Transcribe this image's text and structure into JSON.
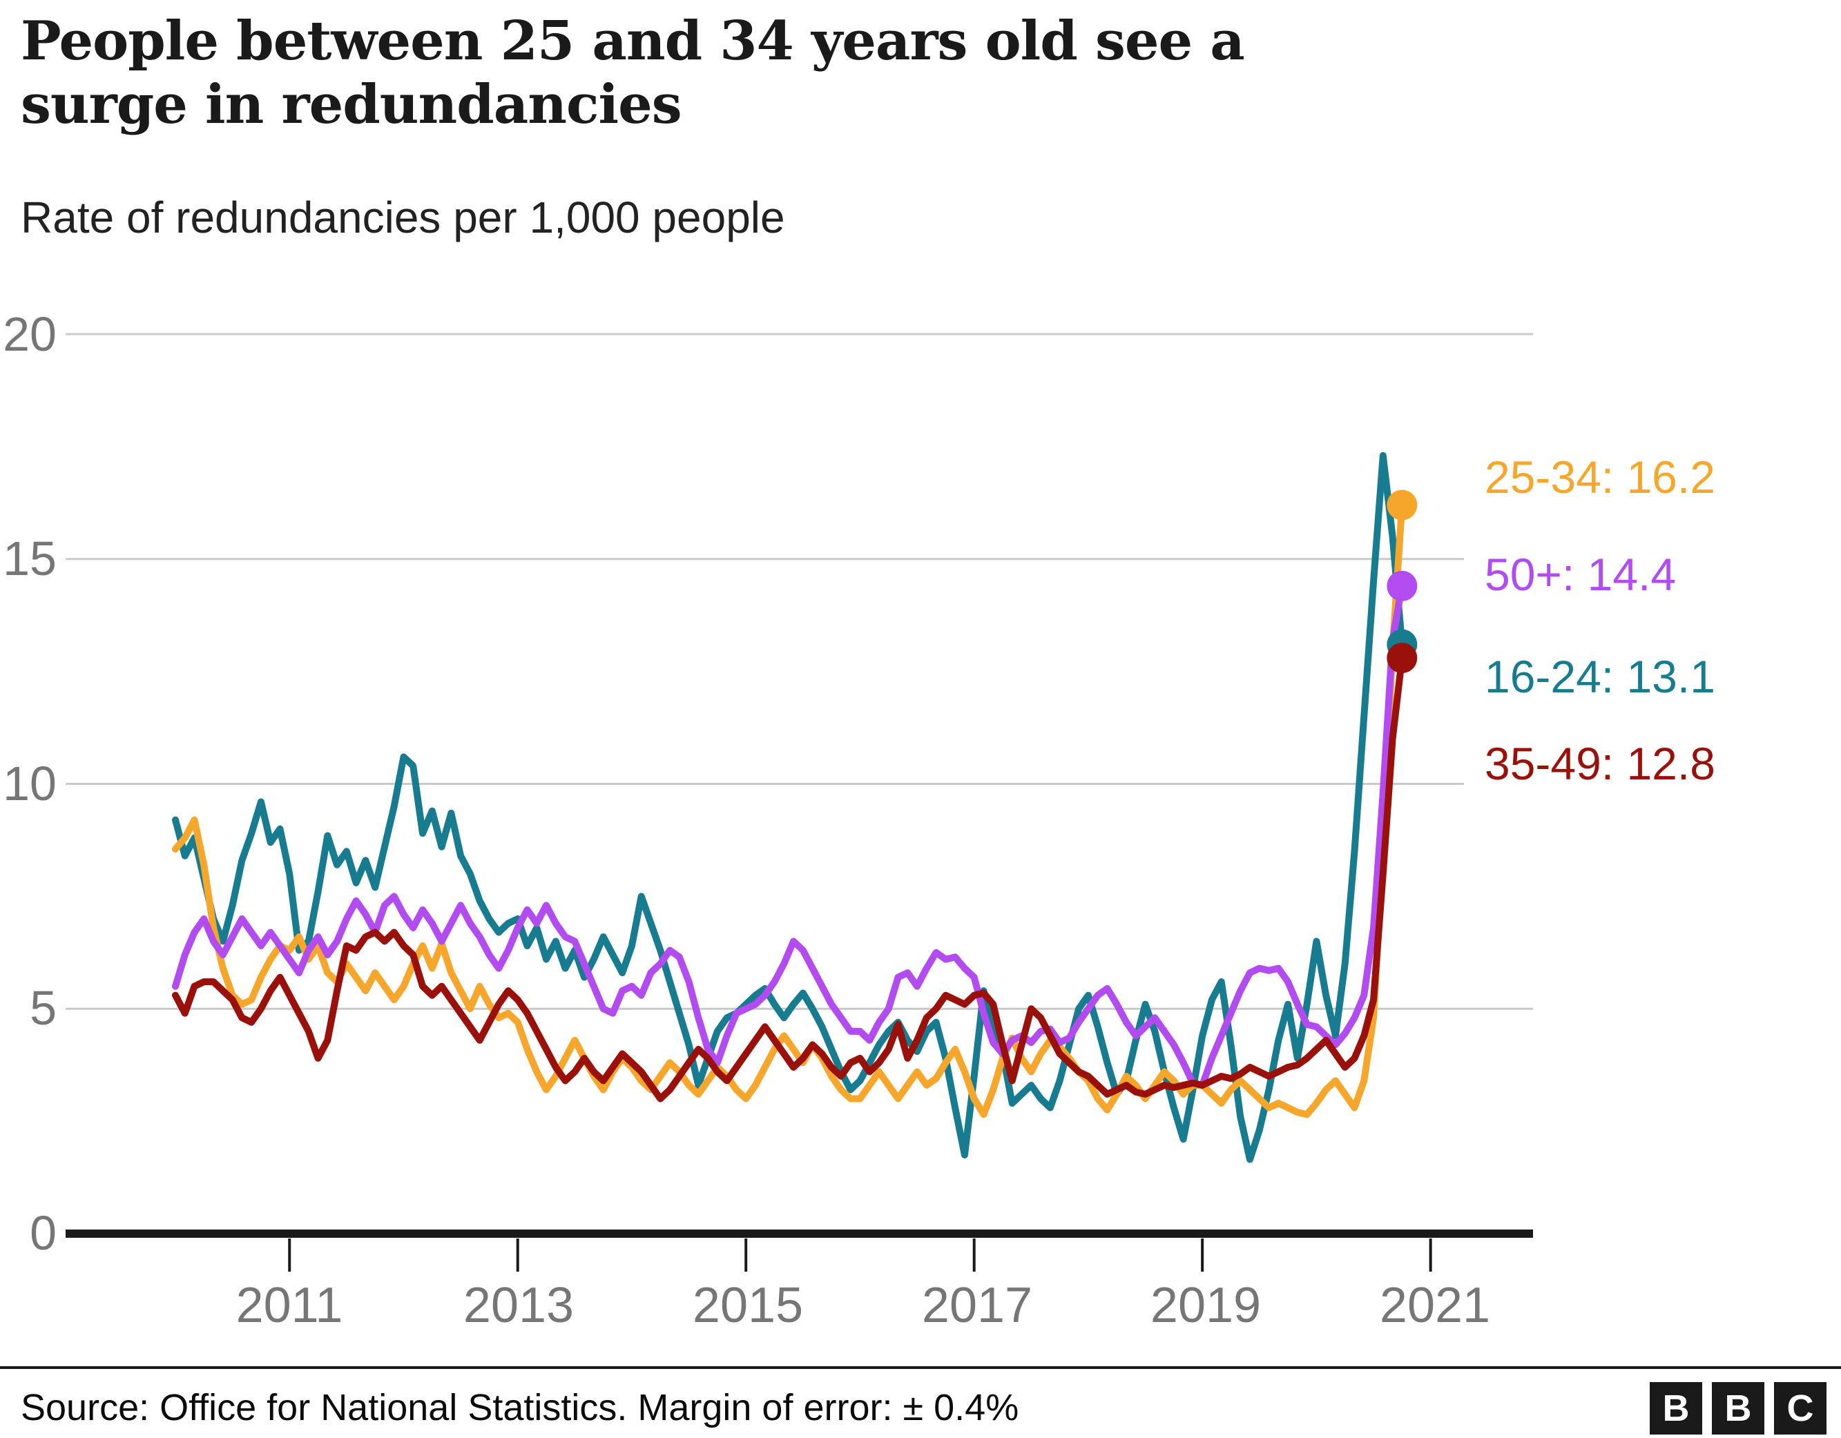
{
  "header": {
    "title_lines": [
      "People between 25 and 34 years old see a",
      "surge in redundancies"
    ],
    "subtitle": "Rate of redundancies per 1,000 people"
  },
  "footer": {
    "source": "Source: Office for National Statistics. Margin of error: ± 0.4%",
    "logo_letters": [
      "B",
      "B",
      "C"
    ]
  },
  "colors": {
    "orange": "#F7A62C",
    "purple": "#B24CF0",
    "teal": "#177C90",
    "dark_red": "#99110A",
    "grid": "#C9C9C9",
    "axis": "#1A1A1A",
    "axis_text": "#767676"
  },
  "chart_data": {
    "type": "line",
    "title": "People between 25 and 34 years old see a surge in redundancies",
    "subtitle": "Rate of redundancies per 1,000 people",
    "ylabel": "Rate of redundancies per 1,000 people",
    "xlabel": "",
    "x_start": "2010-01",
    "x_end": "2020-10",
    "x_frequency": "monthly",
    "x_tick_labels": [
      "2011",
      "2013",
      "2015",
      "2017",
      "2019",
      "2021"
    ],
    "y_ticks": [
      0,
      5,
      10,
      15,
      20
    ],
    "y_tick_labels": [
      "0",
      "5",
      "10",
      "15",
      "20"
    ],
    "ylim": [
      0,
      20
    ],
    "grid": "horizontal",
    "legend_position": "right-annotations",
    "series": [
      {
        "name": "16-24",
        "color": "#177C90",
        "final_value": 13.1,
        "annotation": "16-24: 13.1",
        "values": [
          9.2,
          8.4,
          8.8,
          7.9,
          7.0,
          6.5,
          7.3,
          8.3,
          8.9,
          9.6,
          8.7,
          9.0,
          8.0,
          6.3,
          6.5,
          7.6,
          8.85,
          8.2,
          8.5,
          7.8,
          8.3,
          7.7,
          8.6,
          9.5,
          10.6,
          10.4,
          8.9,
          9.4,
          8.6,
          9.35,
          8.4,
          8.0,
          7.4,
          7.0,
          6.7,
          6.9,
          7.0,
          6.4,
          6.8,
          6.1,
          6.5,
          5.9,
          6.3,
          5.7,
          6.1,
          6.6,
          6.2,
          5.8,
          6.4,
          7.5,
          6.9,
          6.3,
          5.6,
          4.9,
          4.2,
          3.3,
          3.9,
          4.5,
          4.8,
          4.9,
          5.1,
          5.3,
          5.45,
          5.1,
          4.8,
          5.1,
          5.35,
          5.0,
          4.6,
          4.1,
          3.6,
          3.2,
          3.4,
          3.8,
          4.2,
          4.5,
          4.7,
          4.3,
          4.05,
          4.5,
          4.7,
          3.9,
          2.8,
          1.75,
          3.5,
          5.4,
          4.6,
          4.0,
          2.9,
          3.1,
          3.3,
          3.0,
          2.8,
          3.4,
          4.2,
          5.0,
          5.3,
          4.6,
          3.8,
          3.1,
          3.4,
          4.3,
          5.1,
          4.5,
          3.6,
          2.8,
          2.1,
          3.2,
          4.4,
          5.2,
          5.6,
          4.2,
          2.6,
          1.65,
          2.3,
          3.2,
          4.3,
          5.1,
          3.9,
          5.1,
          6.5,
          5.3,
          4.4,
          6.0,
          8.5,
          11.5,
          14.5,
          17.3,
          15.5,
          13.1
        ]
      },
      {
        "name": "25-34",
        "color": "#F7A62C",
        "final_value": 16.2,
        "annotation": "25-34: 16.2",
        "values": [
          8.55,
          8.8,
          9.2,
          8.2,
          6.8,
          5.9,
          5.3,
          5.1,
          5.2,
          5.7,
          6.1,
          6.4,
          6.3,
          6.6,
          6.1,
          6.4,
          5.8,
          5.6,
          6.0,
          5.7,
          5.4,
          5.8,
          5.5,
          5.2,
          5.5,
          6.0,
          6.4,
          5.9,
          6.45,
          5.8,
          5.4,
          5.0,
          5.5,
          5.1,
          4.8,
          4.9,
          4.7,
          4.1,
          3.6,
          3.2,
          3.5,
          3.9,
          4.3,
          3.9,
          3.5,
          3.2,
          3.6,
          3.9,
          3.7,
          3.4,
          3.2,
          3.5,
          3.8,
          3.6,
          3.3,
          3.1,
          3.4,
          3.7,
          3.5,
          3.2,
          3.0,
          3.3,
          3.7,
          4.1,
          4.4,
          4.1,
          3.8,
          4.2,
          3.9,
          3.5,
          3.2,
          3.0,
          3.0,
          3.3,
          3.6,
          3.3,
          3.0,
          3.3,
          3.6,
          3.3,
          3.45,
          3.8,
          4.1,
          3.6,
          3.0,
          2.65,
          3.2,
          3.9,
          4.35,
          3.9,
          3.6,
          4.0,
          4.3,
          4.15,
          3.9,
          3.6,
          3.4,
          3.0,
          2.75,
          3.1,
          3.5,
          3.3,
          3.0,
          3.3,
          3.6,
          3.4,
          3.1,
          3.3,
          3.3,
          3.1,
          2.9,
          3.2,
          3.4,
          3.2,
          3.0,
          2.8,
          2.9,
          2.8,
          2.7,
          2.65,
          2.9,
          3.2,
          3.4,
          3.1,
          2.8,
          3.4,
          4.8,
          8.5,
          13.0,
          16.2
        ]
      },
      {
        "name": "50+",
        "color": "#B24CF0",
        "final_value": 14.4,
        "annotation": "50+: 14.4",
        "values": [
          5.5,
          6.2,
          6.7,
          7.0,
          6.5,
          6.2,
          6.6,
          7.0,
          6.7,
          6.4,
          6.7,
          6.4,
          6.1,
          5.8,
          6.3,
          6.6,
          6.2,
          6.5,
          7.0,
          7.4,
          7.1,
          6.7,
          7.3,
          7.5,
          7.1,
          6.8,
          7.2,
          6.9,
          6.5,
          6.9,
          7.3,
          6.9,
          6.6,
          6.2,
          5.9,
          6.3,
          6.8,
          7.2,
          6.9,
          7.3,
          6.9,
          6.6,
          6.5,
          6.0,
          5.5,
          5.0,
          4.9,
          5.4,
          5.5,
          5.3,
          5.8,
          6.0,
          6.3,
          6.15,
          5.6,
          4.8,
          4.1,
          3.8,
          4.4,
          4.9,
          5.0,
          5.1,
          5.3,
          5.6,
          6.0,
          6.5,
          6.3,
          5.9,
          5.5,
          5.1,
          4.8,
          4.5,
          4.5,
          4.3,
          4.7,
          5.0,
          5.7,
          5.8,
          5.5,
          5.9,
          6.25,
          6.1,
          6.15,
          5.9,
          5.7,
          4.9,
          4.25,
          4.0,
          4.3,
          4.4,
          4.25,
          4.5,
          4.55,
          4.25,
          4.35,
          4.7,
          5.0,
          5.3,
          5.45,
          5.1,
          4.7,
          4.4,
          4.6,
          4.8,
          4.5,
          4.2,
          3.8,
          3.35,
          3.3,
          3.9,
          4.4,
          4.9,
          5.4,
          5.8,
          5.9,
          5.85,
          5.9,
          5.6,
          5.1,
          4.65,
          4.6,
          4.4,
          4.2,
          4.45,
          4.8,
          5.3,
          6.8,
          9.8,
          13.2,
          14.4
        ]
      },
      {
        "name": "35-49",
        "color": "#99110A",
        "final_value": 12.8,
        "annotation": "35-49: 12.8",
        "values": [
          5.3,
          4.9,
          5.5,
          5.6,
          5.6,
          5.4,
          5.2,
          4.8,
          4.7,
          5.0,
          5.4,
          5.7,
          5.3,
          4.9,
          4.5,
          3.9,
          4.3,
          5.4,
          6.4,
          6.3,
          6.6,
          6.7,
          6.5,
          6.7,
          6.4,
          6.2,
          5.5,
          5.3,
          5.5,
          5.2,
          4.9,
          4.6,
          4.3,
          4.7,
          5.1,
          5.4,
          5.2,
          4.9,
          4.5,
          4.1,
          3.7,
          3.4,
          3.6,
          3.9,
          3.6,
          3.4,
          3.7,
          4.0,
          3.8,
          3.6,
          3.3,
          3.0,
          3.2,
          3.5,
          3.8,
          4.1,
          3.9,
          3.6,
          3.4,
          3.7,
          4.0,
          4.3,
          4.6,
          4.3,
          4.0,
          3.7,
          3.9,
          4.2,
          4.0,
          3.7,
          3.5,
          3.8,
          3.9,
          3.6,
          3.8,
          4.1,
          4.65,
          3.9,
          4.3,
          4.8,
          5.0,
          5.3,
          5.2,
          5.1,
          5.3,
          5.35,
          5.1,
          4.2,
          3.4,
          4.2,
          5.0,
          4.8,
          4.4,
          4.0,
          3.8,
          3.6,
          3.5,
          3.3,
          3.1,
          3.2,
          3.3,
          3.15,
          3.1,
          3.2,
          3.3,
          3.25,
          3.3,
          3.35,
          3.3,
          3.4,
          3.5,
          3.45,
          3.55,
          3.7,
          3.6,
          3.5,
          3.6,
          3.7,
          3.75,
          3.9,
          4.1,
          4.3,
          4.0,
          3.7,
          3.9,
          4.4,
          5.2,
          8.0,
          11.0,
          12.8
        ]
      }
    ]
  }
}
